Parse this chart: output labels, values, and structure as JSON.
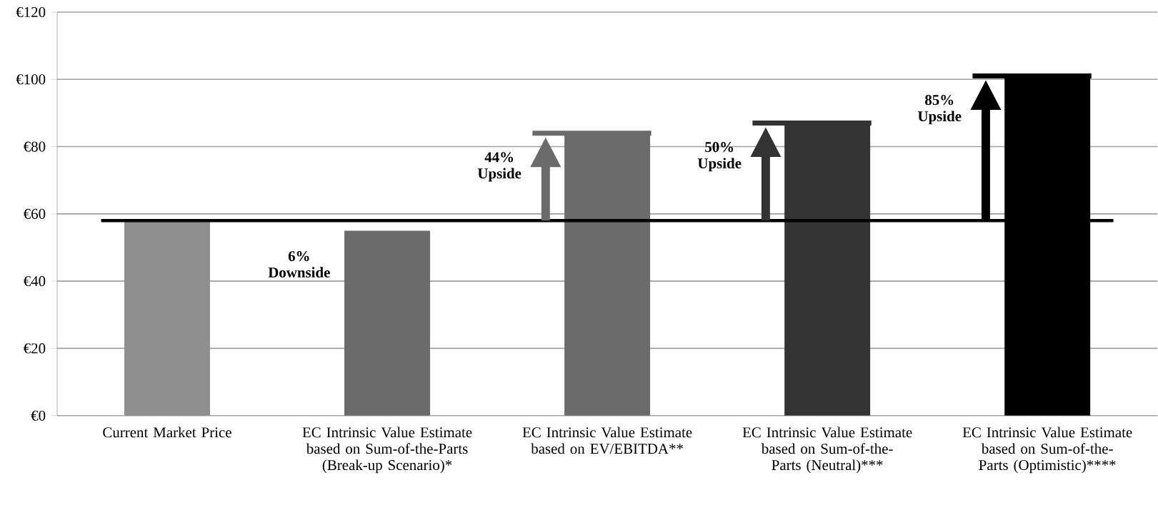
{
  "chart_data": {
    "type": "bar",
    "categories": [
      "Current Market Price",
      "EC Intrinsic Value Estimate based on Sum-of-the-Parts (Break-up Scenario)*",
      "EC Intrinsic Value Estimate based on EV/EBITDA**",
      "EC Intrinsic Value Estimate based on Sum-of-the-Parts (Neutral)***",
      "EC Intrinsic Value Estimate based on Sum-of-the-Parts (Optimistic)****"
    ],
    "values": [
      58,
      55,
      84,
      87,
      101
    ],
    "colors": [
      "#8f8f8f",
      "#6b6b6b",
      "#6b6b6b",
      "#333333",
      "#000000"
    ],
    "ylim": [
      0,
      120
    ],
    "yticks": [
      {
        "value": 0,
        "label": "€0"
      },
      {
        "value": 20,
        "label": "€20"
      },
      {
        "value": 40,
        "label": "€40"
      },
      {
        "value": 60,
        "label": "€60"
      },
      {
        "value": 80,
        "label": "€80"
      },
      {
        "value": 100,
        "label": "€100"
      },
      {
        "value": 120,
        "label": "€120"
      }
    ],
    "grid": "y",
    "ref_lines": [
      {
        "axis": "y",
        "value": 58,
        "color": "#000000"
      }
    ],
    "annotations": [
      "6% Downside",
      "44% Upside",
      "50% Upside",
      "85% Upside"
    ]
  }
}
